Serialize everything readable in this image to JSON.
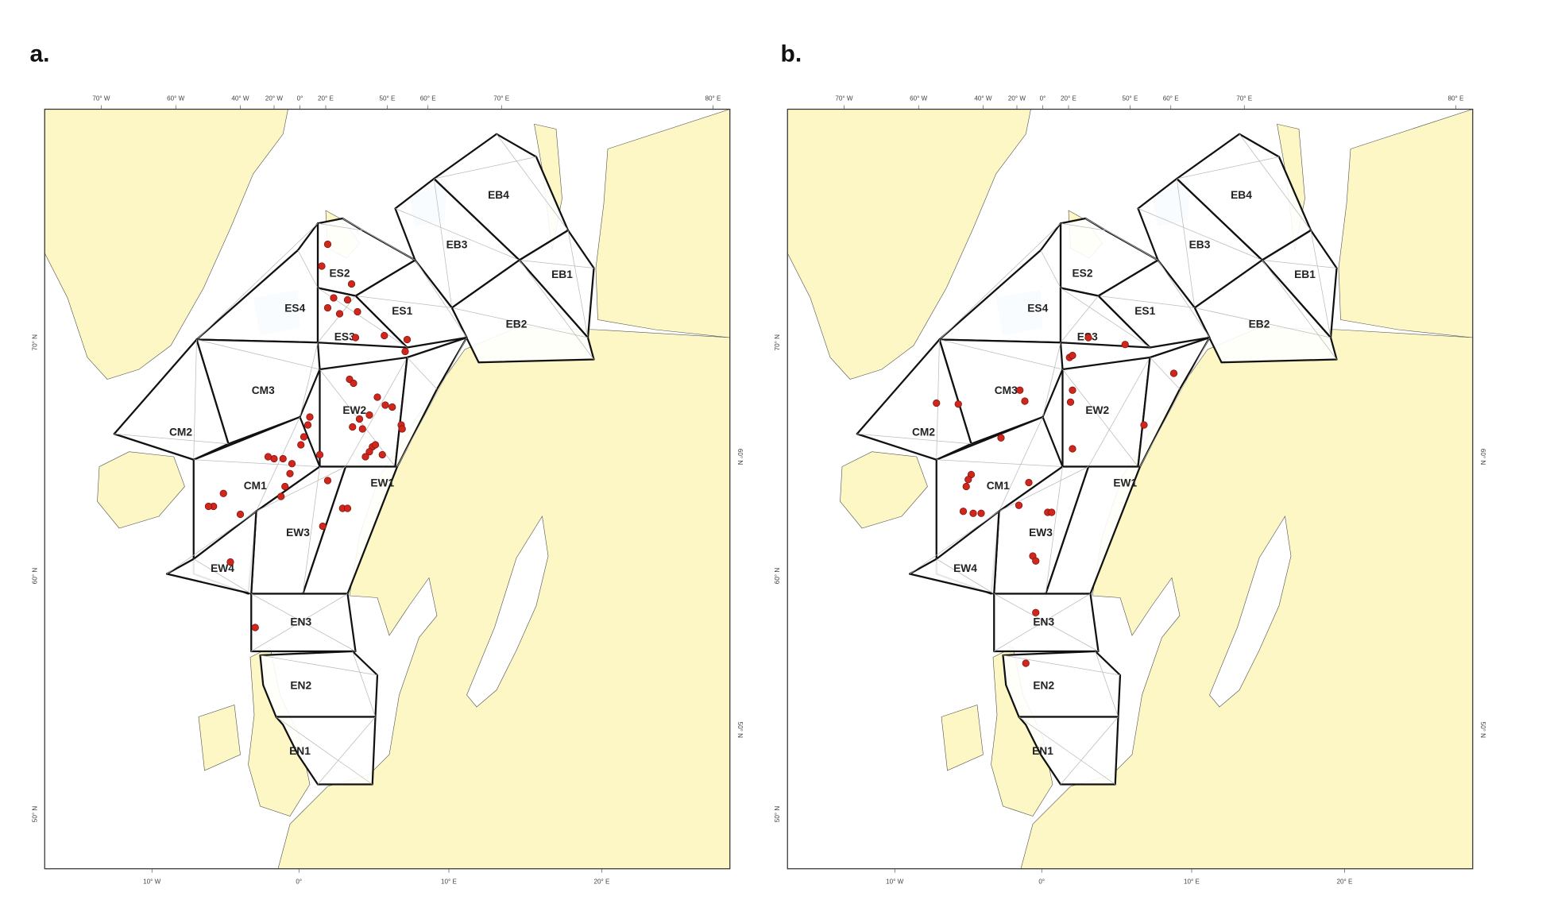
{
  "panels": [
    {
      "label": "a.",
      "top_axis": [
        "70° W",
        "60° W",
        "40° W",
        "20° W",
        "0°",
        "20° E",
        "50° E",
        "60° E",
        "70° E",
        "80° E"
      ],
      "bottom_axis": [
        "10° W",
        "0°",
        "10° E",
        "20° E"
      ],
      "left_axis": [
        "70° N",
        "60° N",
        "50° N"
      ],
      "right_axis": [
        "60° N",
        "50° N"
      ],
      "regions": [
        "EB4",
        "EB3",
        "EB1",
        "EB2",
        "ES2",
        "ES4",
        "ES1",
        "ES3",
        "CM3",
        "EW2",
        "CM2",
        "CM1",
        "EW1",
        "EW3",
        "EW4",
        "EN3",
        "EN2",
        "EN1"
      ]
    },
    {
      "label": "b.",
      "top_axis": [
        "70° W",
        "60° W",
        "40° W",
        "20° W",
        "0°",
        "20° E",
        "50° E",
        "60° E",
        "70° E",
        "80° E"
      ],
      "bottom_axis": [
        "10° W",
        "0°",
        "10° E",
        "20° E"
      ],
      "left_axis": [
        "70° N",
        "60° N",
        "50° N"
      ],
      "right_axis": [
        "60° N",
        "50° N"
      ],
      "regions": [
        "EB4",
        "EB3",
        "EB1",
        "EB2",
        "ES2",
        "ES4",
        "ES1",
        "ES3",
        "CM3",
        "EW2",
        "CM2",
        "CM1",
        "EW1",
        "EW3",
        "EW4",
        "EN3",
        "EN2",
        "EN1"
      ]
    }
  ]
}
